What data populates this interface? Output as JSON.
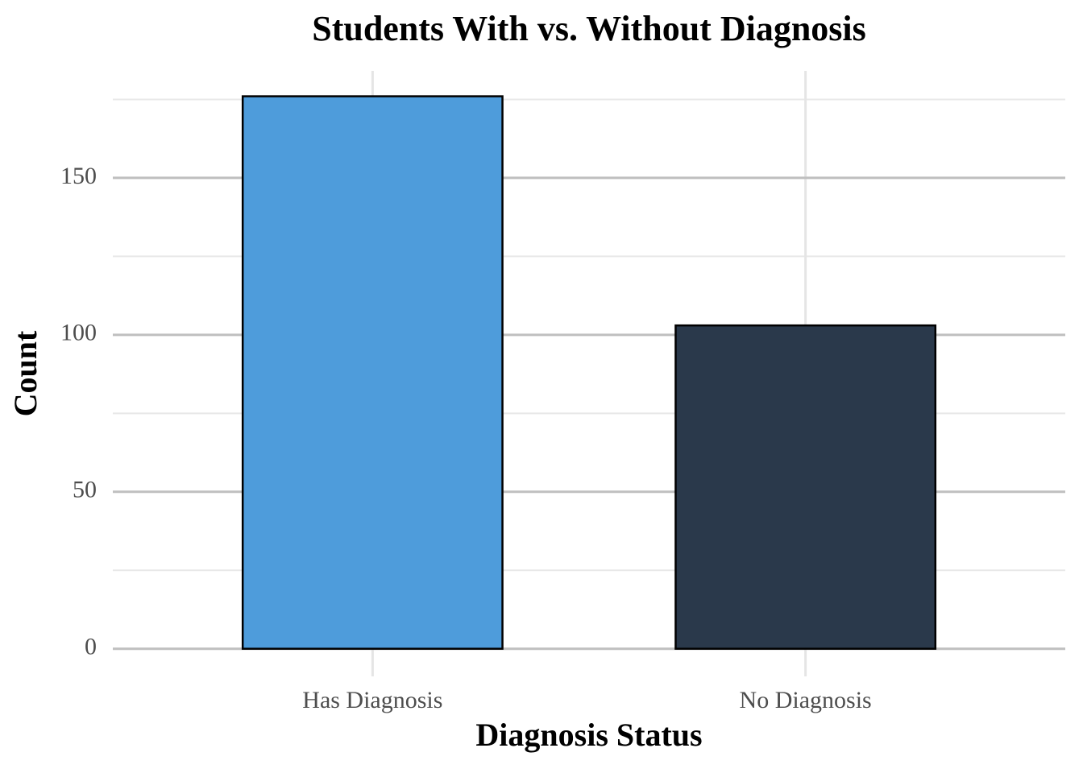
{
  "chart_data": {
    "type": "bar",
    "title": "Students With vs. Without Diagnosis",
    "x_label": "Diagnosis Status",
    "y_label": "Count",
    "categories": [
      "Has Diagnosis",
      "No Diagnosis"
    ],
    "values": [
      176,
      103
    ],
    "colors": [
      "#4e9cdb",
      "#2a394b"
    ],
    "ylim": [
      -8.8,
      184.1
    ],
    "yticks": [
      0,
      50,
      100,
      150
    ],
    "minor_yticks": [
      25,
      75,
      125,
      175
    ],
    "grid": true
  }
}
